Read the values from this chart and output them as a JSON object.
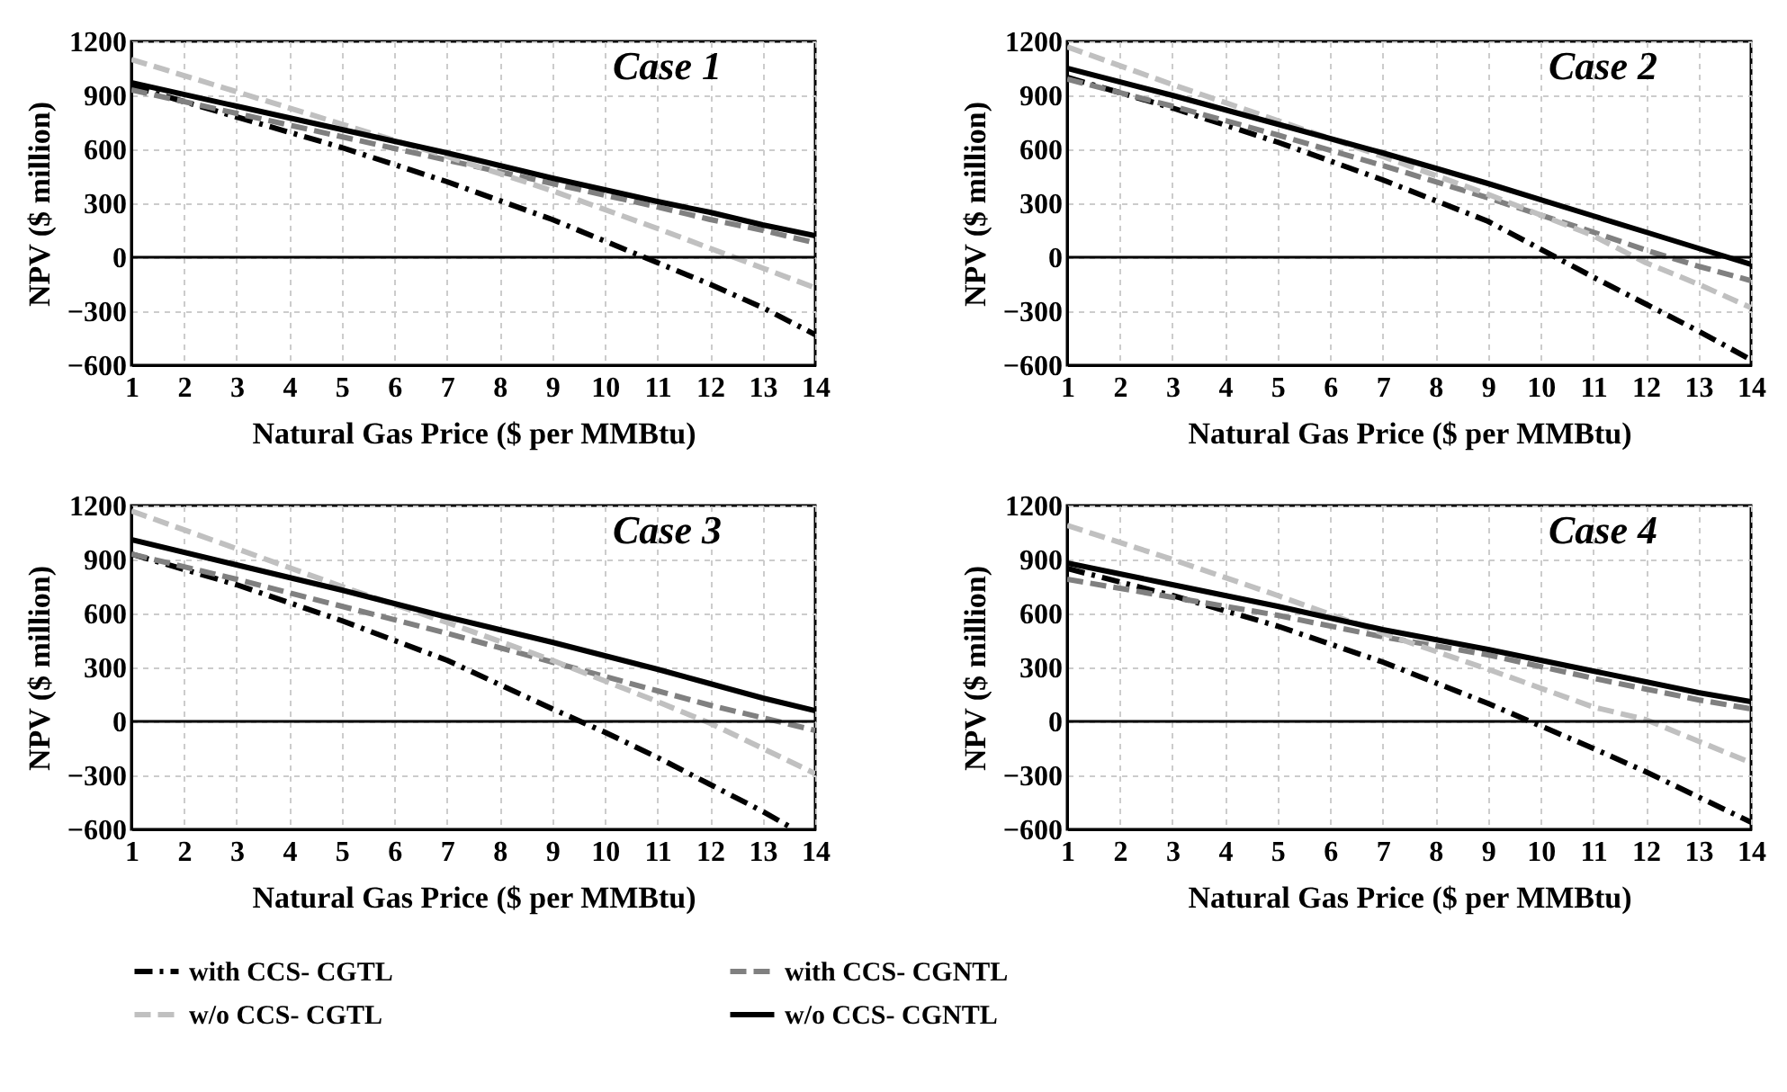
{
  "chart_data": [
    {
      "type": "line",
      "title": "Case 1",
      "xlabel": "Natural Gas Price ($ per MMBtu)",
      "ylabel": "NPV ($ million)",
      "x": [
        1,
        3,
        5,
        7,
        9,
        11,
        12,
        13,
        14
      ],
      "xlim": [
        1,
        14
      ],
      "xticks": [
        1,
        2,
        3,
        4,
        5,
        6,
        7,
        8,
        9,
        10,
        11,
        12,
        13,
        14
      ],
      "ylim": [
        -600,
        1200
      ],
      "yticks": [
        -600,
        -300,
        0,
        300,
        600,
        900,
        1200
      ],
      "grid": true,
      "legend": "bottom",
      "ref_lines": [
        {
          "axis": "y",
          "value": 0,
          "color": "#000000"
        }
      ],
      "series": [
        {
          "name": "with CCS- CGTL",
          "color": "#000000",
          "line_style": "dashdot",
          "values": [
            950,
            780,
            610,
            420,
            210,
            -30,
            -150,
            -280,
            -430
          ]
        },
        {
          "name": "with CCS- CGNTL",
          "color": "#808080",
          "line_style": "dashed",
          "values": [
            930,
            800,
            670,
            540,
            410,
            280,
            210,
            150,
            80
          ]
        },
        {
          "name": "w/o CCS- CGTL",
          "color": "#c0c0c0",
          "line_style": "dashed",
          "values": [
            1100,
            920,
            740,
            560,
            370,
            160,
            50,
            -60,
            -170
          ]
        },
        {
          "name": "w/o CCS- CGNTL",
          "color": "#000000",
          "line_style": "solid",
          "values": [
            970,
            840,
            710,
            580,
            440,
            310,
            250,
            180,
            120
          ]
        }
      ]
    },
    {
      "type": "line",
      "title": "Case 2",
      "xlabel": "Natural Gas Price ($ per MMBtu)",
      "ylabel": "NPV ($ million)",
      "x": [
        1,
        3,
        5,
        7,
        9,
        11,
        12,
        13,
        14
      ],
      "xlim": [
        1,
        14
      ],
      "xticks": [
        1,
        2,
        3,
        4,
        5,
        6,
        7,
        8,
        9,
        10,
        11,
        12,
        13,
        14
      ],
      "ylim": [
        -600,
        1200
      ],
      "yticks": [
        -600,
        -300,
        0,
        300,
        600,
        900,
        1200
      ],
      "grid": true,
      "legend": "bottom",
      "ref_lines": [
        {
          "axis": "y",
          "value": 0,
          "color": "#000000"
        }
      ],
      "series": [
        {
          "name": "with CCS- CGTL",
          "color": "#000000",
          "line_style": "dashdot",
          "values": [
            1000,
            830,
            640,
            430,
            200,
            -110,
            -260,
            -410,
            -570
          ]
        },
        {
          "name": "with CCS- CGNTL",
          "color": "#808080",
          "line_style": "dashed",
          "values": [
            990,
            840,
            680,
            510,
            330,
            140,
            40,
            -50,
            -130
          ]
        },
        {
          "name": "w/o CCS- CGTL",
          "color": "#c0c0c0",
          "line_style": "dashed",
          "values": [
            1170,
            960,
            760,
            560,
            350,
            120,
            -30,
            -150,
            -280
          ]
        },
        {
          "name": "w/o CCS- CGNTL",
          "color": "#000000",
          "line_style": "solid",
          "values": [
            1050,
            900,
            740,
            580,
            410,
            230,
            140,
            50,
            -40
          ]
        }
      ]
    },
    {
      "type": "line",
      "title": "Case 3",
      "xlabel": "Natural Gas Price ($ per MMBtu)",
      "ylabel": "NPV ($ million)",
      "x": [
        1,
        3,
        5,
        7,
        9,
        11,
        12,
        13,
        14
      ],
      "xlim": [
        1,
        14
      ],
      "xticks": [
        1,
        2,
        3,
        4,
        5,
        6,
        7,
        8,
        9,
        10,
        11,
        12,
        13,
        14
      ],
      "ylim": [
        -600,
        1200
      ],
      "yticks": [
        -600,
        -300,
        0,
        300,
        600,
        900,
        1200
      ],
      "grid": true,
      "legend": "bottom",
      "ref_lines": [
        {
          "axis": "y",
          "value": 0,
          "color": "#000000"
        }
      ],
      "series": [
        {
          "name": "with CCS- CGTL",
          "color": "#000000",
          "line_style": "dashdot",
          "x": [
            1,
            3,
            5,
            7,
            9,
            10,
            11,
            12,
            13,
            13.6
          ],
          "values": [
            930,
            760,
            560,
            340,
            70,
            -60,
            -200,
            -350,
            -500,
            -600
          ]
        },
        {
          "name": "with CCS- CGNTL",
          "color": "#808080",
          "line_style": "dashed",
          "values": [
            930,
            790,
            640,
            490,
            330,
            170,
            90,
            20,
            -50
          ]
        },
        {
          "name": "w/o CCS- CGTL",
          "color": "#c0c0c0",
          "line_style": "dashed",
          "values": [
            1170,
            960,
            750,
            550,
            340,
            110,
            -10,
            -150,
            -290
          ]
        },
        {
          "name": "w/o CCS- CGNTL",
          "color": "#000000",
          "line_style": "solid",
          "values": [
            1010,
            870,
            730,
            580,
            440,
            290,
            210,
            130,
            60
          ]
        }
      ]
    },
    {
      "type": "line",
      "title": "Case 4",
      "xlabel": "Natural Gas Price ($ per MMBtu)",
      "ylabel": "NPV ($ million)",
      "x": [
        1,
        3,
        5,
        7,
        9,
        11,
        12,
        13,
        14
      ],
      "xlim": [
        1,
        14
      ],
      "xticks": [
        1,
        2,
        3,
        4,
        5,
        6,
        7,
        8,
        9,
        10,
        11,
        12,
        13,
        14
      ],
      "ylim": [
        -600,
        1200
      ],
      "yticks": [
        -600,
        -300,
        0,
        300,
        600,
        900,
        1200
      ],
      "grid": true,
      "legend": "bottom",
      "ref_lines": [
        {
          "axis": "y",
          "value": 0,
          "color": "#000000"
        }
      ],
      "series": [
        {
          "name": "with CCS- CGTL",
          "color": "#000000",
          "line_style": "dashdot",
          "values": [
            850,
            700,
            530,
            330,
            100,
            -150,
            -280,
            -420,
            -560
          ]
        },
        {
          "name": "with CCS- CGNTL",
          "color": "#808080",
          "line_style": "dashed",
          "values": [
            790,
            690,
            590,
            470,
            370,
            240,
            180,
            120,
            70
          ]
        },
        {
          "name": "w/o CCS- CGTL",
          "color": "#c0c0c0",
          "line_style": "dashed",
          "values": [
            1090,
            900,
            700,
            490,
            290,
            80,
            10,
            -110,
            -230
          ]
        },
        {
          "name": "w/o CCS- CGNTL",
          "color": "#000000",
          "line_style": "solid",
          "values": [
            880,
            760,
            640,
            510,
            400,
            280,
            220,
            160,
            110
          ]
        }
      ]
    }
  ]
}
